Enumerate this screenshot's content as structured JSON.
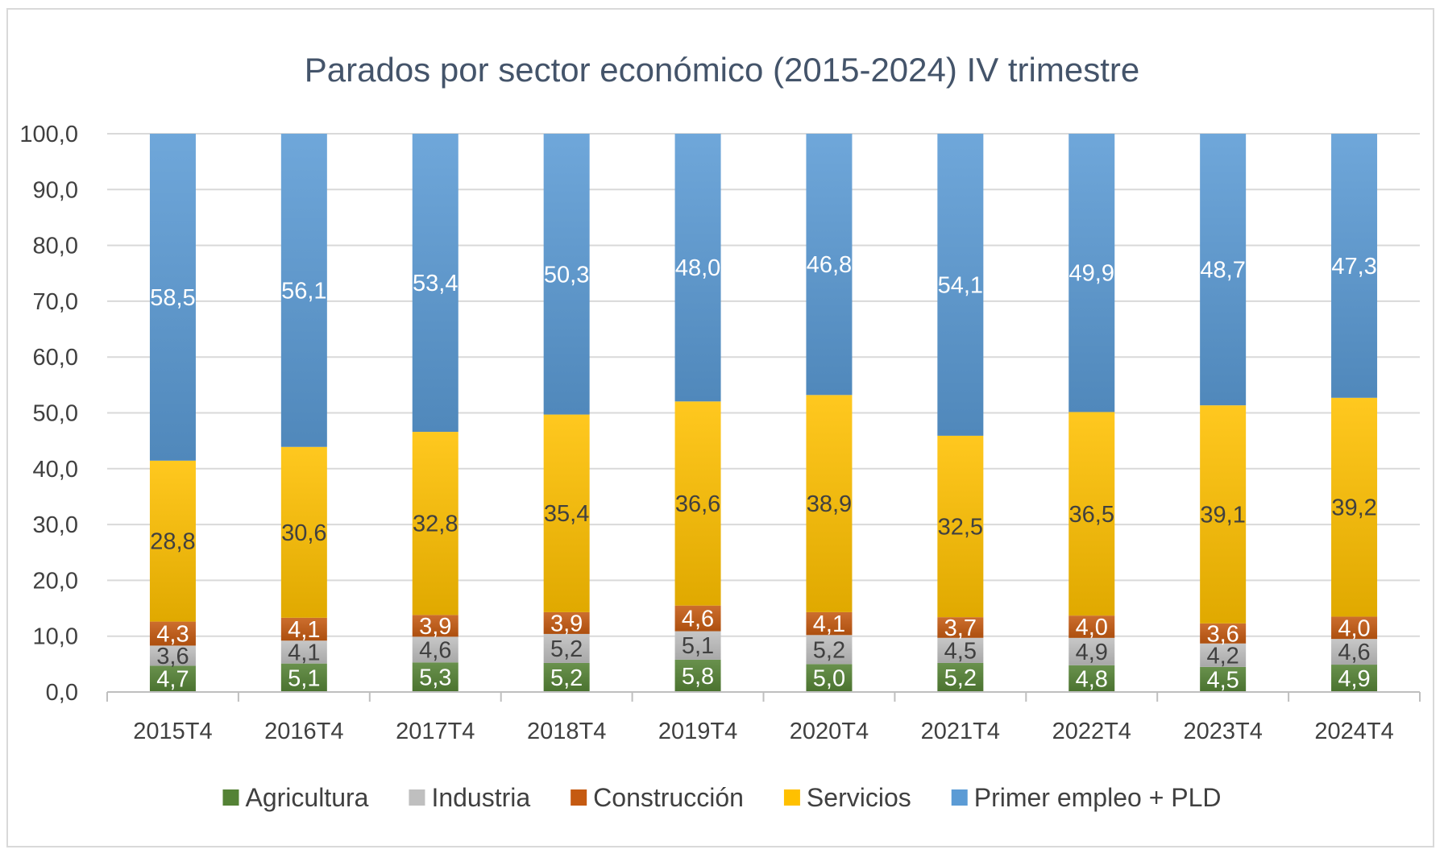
{
  "chart_data": {
    "type": "bar",
    "stacked": true,
    "title": "Parados por sector económico (2015-2024) IV trimestre",
    "xlabel": "",
    "ylabel": "",
    "ylim": [
      0,
      100
    ],
    "ytick_step": 10,
    "ytick_labels": [
      "0,0",
      "10,0",
      "20,0",
      "30,0",
      "40,0",
      "50,0",
      "60,0",
      "70,0",
      "80,0",
      "90,0",
      "100,0"
    ],
    "grid": true,
    "legend_position": "bottom",
    "categories": [
      "2015T4",
      "2016T4",
      "2017T4",
      "2018T4",
      "2019T4",
      "2020T4",
      "2021T4",
      "2022T4",
      "2023T4",
      "2024T4"
    ],
    "series": [
      {
        "name": "Agricultura",
        "color": "#548235",
        "label_color": "#ffffff",
        "values": [
          4.7,
          5.1,
          5.3,
          5.2,
          5.8,
          5.0,
          5.2,
          4.8,
          4.5,
          4.9
        ],
        "labels": [
          "4,7",
          "5,1",
          "5,3",
          "5,2",
          "5,8",
          "5,0",
          "5,2",
          "4,8",
          "4,5",
          "4,9"
        ]
      },
      {
        "name": "Industria",
        "color": "#bfbfbf",
        "label_color": "#404040",
        "values": [
          3.6,
          4.1,
          4.6,
          5.2,
          5.1,
          5.2,
          4.5,
          4.9,
          4.2,
          4.6
        ],
        "labels": [
          "3,6",
          "4,1",
          "4,6",
          "5,2",
          "5,1",
          "5,2",
          "4,5",
          "4,9",
          "4,2",
          "4,6"
        ]
      },
      {
        "name": "Construcción",
        "color": "#c55a11",
        "label_color": "#ffffff",
        "values": [
          4.3,
          4.1,
          3.9,
          3.9,
          4.6,
          4.1,
          3.7,
          4.0,
          3.6,
          4.0
        ],
        "labels": [
          "4,3",
          "4,1",
          "3,9",
          "3,9",
          "4,6",
          "4,1",
          "3,7",
          "4,0",
          "3,6",
          "4,0"
        ]
      },
      {
        "name": "Servicios",
        "color": "#ffc000",
        "label_color": "#404040",
        "values": [
          28.8,
          30.6,
          32.8,
          35.4,
          36.6,
          38.9,
          32.5,
          36.5,
          39.1,
          39.2
        ],
        "labels": [
          "28,8",
          "30,6",
          "32,8",
          "35,4",
          "36,6",
          "38,9",
          "32,5",
          "36,5",
          "39,1",
          "39,2"
        ]
      },
      {
        "name": "Primer empleo + PLD",
        "color": "#5b9bd5",
        "label_color": "#ffffff",
        "values": [
          58.5,
          56.1,
          53.4,
          50.3,
          48.0,
          46.8,
          54.1,
          49.9,
          48.7,
          47.3
        ],
        "labels": [
          "58,5",
          "56,1",
          "53,4",
          "50,3",
          "48,0",
          "46,8",
          "54,1",
          "49,9",
          "48,7",
          "47,3"
        ]
      }
    ]
  }
}
